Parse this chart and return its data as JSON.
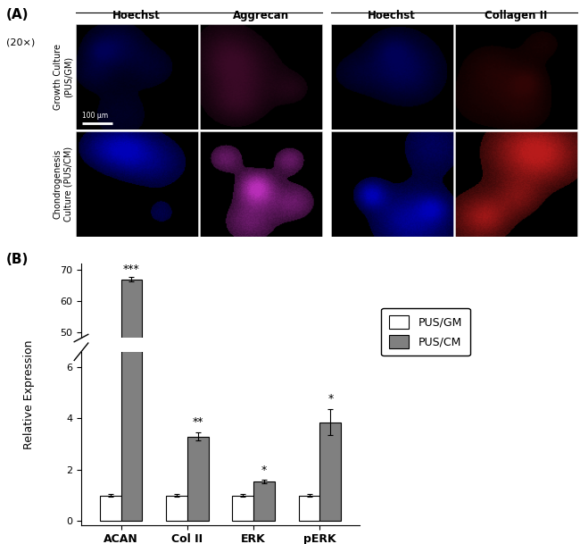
{
  "panel_A_label": "(A)",
  "panel_B_label": "(B)",
  "magnification": "(20×)",
  "col_headers": [
    "Hoechst",
    "Aggrecan",
    "Hoechst",
    "Collagen II"
  ],
  "row_labels_top": [
    "Growth Culture",
    "(PUS/GM)"
  ],
  "row_labels_bot": [
    "Chondrogenesis",
    "Culture (PUS/CM)"
  ],
  "scalebar_text": "100 μm",
  "ylabel": "Relative Expression",
  "categories": [
    "ACAN",
    "Col II",
    "ERK",
    "pERK"
  ],
  "gm_values": [
    1.0,
    1.0,
    1.0,
    1.0
  ],
  "cm_values": [
    67.0,
    3.3,
    1.55,
    3.85
  ],
  "gm_errors": [
    0.05,
    0.05,
    0.05,
    0.05
  ],
  "cm_errors": [
    0.8,
    0.15,
    0.08,
    0.5
  ],
  "significance": [
    "***",
    "**",
    "*",
    "*"
  ],
  "bar_color_gm": "#ffffff",
  "bar_color_cm": "#808080",
  "bar_edgecolor": "#000000",
  "legend_labels": [
    "PUS/GM",
    "PUS/CM"
  ],
  "figure_bg": "#ffffff",
  "hoechst_color_row1": [
    0,
    0,
    180
  ],
  "aggrecan_color_row1": [
    120,
    20,
    80
  ],
  "collagen_color_row1": [
    100,
    10,
    10
  ],
  "hoechst_color_row2": [
    0,
    0,
    200
  ],
  "aggrecan_color_row2": [
    200,
    50,
    200
  ],
  "collagen_color_row2": [
    200,
    30,
    30
  ]
}
